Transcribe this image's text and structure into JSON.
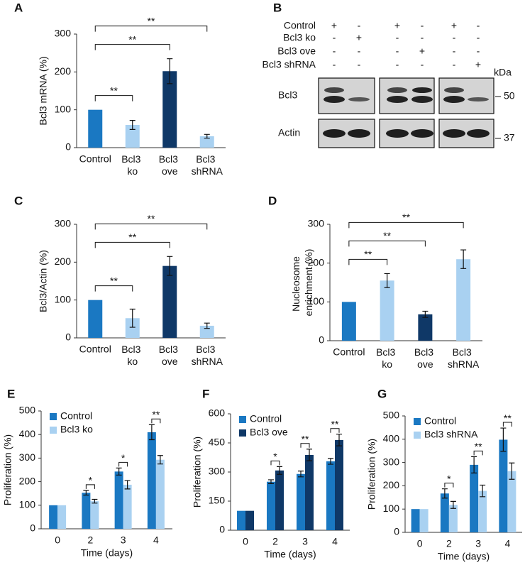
{
  "chart_data": [
    {
      "type": "bar",
      "label": "A",
      "y_label": "Bcl3 mRNA (%)",
      "categories": [
        "Control",
        "Bcl3 ko",
        "Bcl3 ove",
        "Bcl3 shRNA"
      ],
      "values": [
        100,
        60,
        202,
        30
      ],
      "errors": [
        null,
        12,
        33,
        5
      ],
      "colors": [
        "#1a78c2",
        "#a9d1f1",
        "#0f3867",
        "#a9d1f1"
      ],
      "ylim": [
        0,
        300
      ],
      "yticks": [
        0,
        100,
        200,
        300
      ],
      "brackets": [
        {
          "categories": [
            "Control",
            "Bcl3 ko"
          ],
          "label": "**"
        },
        {
          "categories": [
            "Control",
            "Bcl3 ove"
          ],
          "label": "**"
        },
        {
          "categories": [
            "Control",
            "Bcl3 shRNA"
          ],
          "label": "**"
        }
      ]
    },
    {
      "type": "bar",
      "label": "C",
      "y_label": "Bcl3/Actin (%)",
      "categories": [
        "Control",
        "Bcl3 ko",
        "Bcl3 ove",
        "Bcl3 shRNA"
      ],
      "values": [
        100,
        52,
        190,
        32
      ],
      "errors": [
        null,
        24,
        25,
        7
      ],
      "colors": [
        "#1a78c2",
        "#a9d1f1",
        "#0f3867",
        "#a9d1f1"
      ],
      "ylim": [
        0,
        300
      ],
      "yticks": [
        0,
        100,
        200,
        300
      ],
      "brackets": [
        {
          "categories": [
            "Control",
            "Bcl3 ko"
          ],
          "label": "**"
        },
        {
          "categories": [
            "Control",
            "Bcl3 ove"
          ],
          "label": "**"
        },
        {
          "categories": [
            "Control",
            "Bcl3 shRNA"
          ],
          "label": "**"
        }
      ]
    },
    {
      "type": "bar",
      "label": "D",
      "y_label": "Nucleosome enrichment (%)",
      "categories": [
        "Control",
        "Bcl3 ko",
        "Bcl3 ove",
        "Bcl3 shRNA"
      ],
      "values": [
        100,
        155,
        68,
        210
      ],
      "errors": [
        null,
        18,
        8,
        24
      ],
      "colors": [
        "#1a78c2",
        "#a9d1f1",
        "#0f3867",
        "#a9d1f1"
      ],
      "ylim": [
        0,
        300
      ],
      "yticks": [
        0,
        100,
        200,
        300
      ],
      "brackets": [
        {
          "categories": [
            "Control",
            "Bcl3 ko"
          ],
          "label": "**"
        },
        {
          "categories": [
            "Control",
            "Bcl3 ove"
          ],
          "label": "**"
        },
        {
          "categories": [
            "Control",
            "Bcl3 shRNA"
          ],
          "label": "**"
        }
      ]
    },
    {
      "type": "bar",
      "label": "E",
      "y_label": "Proliferation (%)",
      "x_label": "Time (days)",
      "categories": [
        "0",
        "2",
        "3",
        "4"
      ],
      "series": [
        {
          "name": "Control",
          "color": "#1a78c2",
          "values": [
            100,
            153,
            243,
            410
          ],
          "errors": [
            null,
            10,
            15,
            32
          ]
        },
        {
          "name": "Bcl3 ko",
          "color": "#a9d1f1",
          "values": [
            100,
            117,
            187,
            293
          ],
          "errors": [
            null,
            8,
            18,
            18
          ]
        }
      ],
      "ylim": [
        0,
        500
      ],
      "yticks": [
        0,
        100,
        200,
        300,
        400,
        500
      ],
      "legend": "upper left",
      "brackets": [
        {
          "category": "2",
          "label": "*"
        },
        {
          "category": "3",
          "label": "*"
        },
        {
          "category": "4",
          "label": "**"
        }
      ]
    },
    {
      "type": "bar",
      "label": "F",
      "y_label": "Proliferation (%)",
      "x_label": "Time (days)",
      "categories": [
        "0",
        "2",
        "3",
        "4"
      ],
      "series": [
        {
          "name": "Control",
          "color": "#1a78c2",
          "values": [
            100,
            250,
            290,
            355
          ],
          "errors": [
            null,
            10,
            15,
            15
          ]
        },
        {
          "name": "Bcl3 ove",
          "color": "#0f3867",
          "values": [
            100,
            308,
            388,
            465
          ],
          "errors": [
            null,
            20,
            30,
            30
          ]
        }
      ],
      "ylim": [
        0,
        600
      ],
      "yticks": [
        0,
        150,
        300,
        450,
        600
      ],
      "legend": "upper left",
      "brackets": [
        {
          "category": "2",
          "label": "*"
        },
        {
          "category": "3",
          "label": "**"
        },
        {
          "category": "4",
          "label": "**"
        }
      ]
    },
    {
      "type": "bar",
      "label": "G",
      "y_label": "Proliferation (%)",
      "x_label": "Time (days)",
      "categories": [
        "0",
        "2",
        "3",
        "4"
      ],
      "series": [
        {
          "name": "Control",
          "color": "#1a78c2",
          "values": [
            100,
            167,
            290,
            398
          ],
          "errors": [
            null,
            20,
            35,
            50
          ]
        },
        {
          "name": "Bcl3 shRNA",
          "color": "#a9d1f1",
          "values": [
            100,
            118,
            178,
            263
          ],
          "errors": [
            null,
            15,
            25,
            35
          ]
        }
      ],
      "ylim": [
        0,
        500
      ],
      "yticks": [
        0,
        100,
        200,
        300,
        400,
        500
      ],
      "legend": "upper left",
      "brackets": [
        {
          "category": "2",
          "label": "*"
        },
        {
          "category": "3",
          "label": "**"
        },
        {
          "category": "4",
          "label": "**"
        }
      ]
    }
  ],
  "blot": {
    "label": "B",
    "conditions": [
      {
        "name": "Control",
        "signs": [
          "+",
          "-",
          "+",
          "-",
          "+",
          "-"
        ]
      },
      {
        "name": "Bcl3 ko",
        "signs": [
          "-",
          "+",
          "-",
          "-",
          "-",
          "-"
        ]
      },
      {
        "name": "Bcl3 ove",
        "signs": [
          "-",
          "-",
          "-",
          "+",
          "-",
          "-"
        ]
      },
      {
        "name": "Bcl3 shRNA",
        "signs": [
          "-",
          "-",
          "-",
          "-",
          "-",
          "+"
        ]
      }
    ],
    "bands": [
      "Bcl3",
      "Actin"
    ],
    "unit": "kDa",
    "markers": [
      "50",
      "37"
    ]
  }
}
